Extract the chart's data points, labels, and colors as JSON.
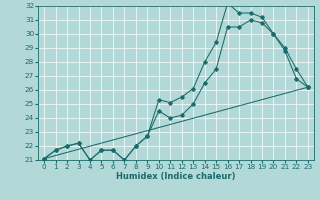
{
  "title": "",
  "xlabel": "Humidex (Indice chaleur)",
  "bg_color": "#b2d8d8",
  "grid_color": "#ffffff",
  "line_color": "#1a6b6b",
  "xlim": [
    -0.5,
    23.5
  ],
  "ylim": [
    21,
    32
  ],
  "xticks": [
    0,
    1,
    2,
    3,
    4,
    5,
    6,
    7,
    8,
    9,
    10,
    11,
    12,
    13,
    14,
    15,
    16,
    17,
    18,
    19,
    20,
    21,
    22,
    23
  ],
  "yticks": [
    21,
    22,
    23,
    24,
    25,
    26,
    27,
    28,
    29,
    30,
    31,
    32
  ],
  "line1_x": [
    0,
    1,
    2,
    3,
    4,
    5,
    6,
    7,
    8,
    9,
    10,
    11,
    12,
    13,
    14,
    15,
    16,
    17,
    18,
    19,
    20,
    21,
    22,
    23
  ],
  "line1_y": [
    21.1,
    21.7,
    22.0,
    22.2,
    21.0,
    21.7,
    21.7,
    21.0,
    22.0,
    22.7,
    25.3,
    25.1,
    25.5,
    26.1,
    28.0,
    29.4,
    32.2,
    31.5,
    31.5,
    31.2,
    30.0,
    29.0,
    27.5,
    26.2
  ],
  "line2_x": [
    0,
    1,
    2,
    3,
    4,
    5,
    6,
    7,
    8,
    9,
    10,
    11,
    12,
    13,
    14,
    15,
    16,
    17,
    18,
    19,
    20,
    21,
    22,
    23
  ],
  "line2_y": [
    21.1,
    21.7,
    22.0,
    22.2,
    21.0,
    21.7,
    21.7,
    21.0,
    22.0,
    22.7,
    24.5,
    24.0,
    24.2,
    25.0,
    26.5,
    27.5,
    30.5,
    30.5,
    31.0,
    30.8,
    30.0,
    28.8,
    26.8,
    26.2
  ],
  "line3_x": [
    0,
    23
  ],
  "line3_y": [
    21.1,
    26.2
  ],
  "xlabel_fontsize": 6.0,
  "tick_fontsize": 5.2,
  "linewidth": 0.75,
  "markersize": 1.8
}
